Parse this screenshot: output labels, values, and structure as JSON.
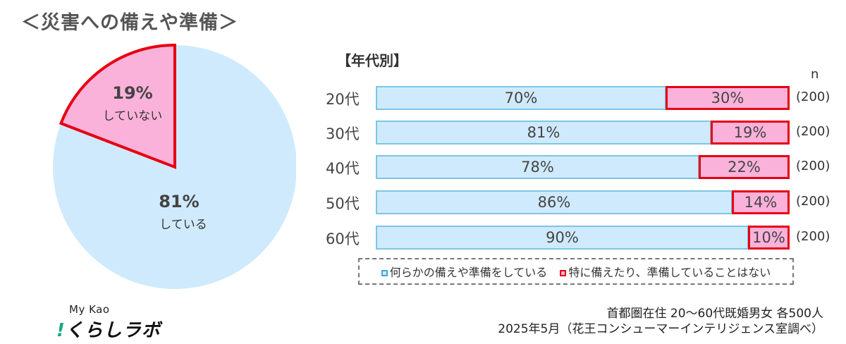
{
  "title": "＜災害への備えや準備＞",
  "colors": {
    "prepared_fill": "#cfeafd",
    "prepared_border": "#7cc6e2",
    "not_prepared_fill": "#fbb2da",
    "not_prepared_border": "#e60012"
  },
  "pie": {
    "slices": [
      {
        "label": "している",
        "pct": "81%",
        "value": 81
      },
      {
        "label": "していない",
        "pct": "19%",
        "value": 19
      }
    ]
  },
  "bars": {
    "section_title": "【年代別】",
    "n_header": "n",
    "rows": [
      {
        "label": "20代",
        "a": 70,
        "a_text": "70%",
        "b": 30,
        "b_text": "30%",
        "n": "(200)"
      },
      {
        "label": "30代",
        "a": 81,
        "a_text": "81%",
        "b": 19,
        "b_text": "19%",
        "n": "(200)"
      },
      {
        "label": "40代",
        "a": 78,
        "a_text": "78%",
        "b": 22,
        "b_text": "22%",
        "n": "(200)"
      },
      {
        "label": "50代",
        "a": 86,
        "a_text": "86%",
        "b": 14,
        "b_text": "14%",
        "n": "(200)"
      },
      {
        "label": "60代",
        "a": 90,
        "a_text": "90%",
        "b": 10,
        "b_text": "10%",
        "n": "(200)"
      }
    ]
  },
  "legend": {
    "a": "何らかの備えや準備をしている",
    "b": "特に備えたり、準備していることはない"
  },
  "logo": {
    "top": "My Kao",
    "main_bang": "!",
    "main": "くらしラボ"
  },
  "source": {
    "line1": "首都圏在住 20～60代既婚男女 各500人",
    "line2": "2025年5月（花王コンシューマーインテリジェンス室調べ）"
  },
  "chart_data": [
    {
      "type": "pie",
      "title": "災害への備えや準備",
      "categories": [
        "している",
        "していない"
      ],
      "values": [
        81,
        19
      ],
      "unit": "%"
    },
    {
      "type": "bar",
      "orientation": "horizontal",
      "stacked": true,
      "title": "年代別",
      "categories": [
        "20代",
        "30代",
        "40代",
        "50代",
        "60代"
      ],
      "series": [
        {
          "name": "何らかの備えや準備をしている",
          "values": [
            70,
            81,
            78,
            86,
            90
          ]
        },
        {
          "name": "特に備えたり、準備していることはない",
          "values": [
            30,
            19,
            22,
            14,
            10
          ]
        }
      ],
      "n": [
        200,
        200,
        200,
        200,
        200
      ],
      "xlim": [
        0,
        100
      ],
      "legend_position": "bottom"
    }
  ]
}
